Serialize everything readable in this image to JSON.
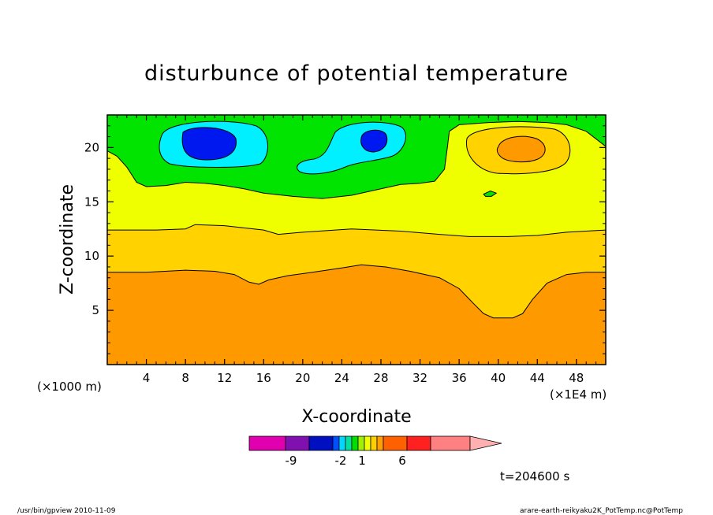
{
  "chart_data": {
    "type": "heatmap",
    "title": "disturbunce of potential temperature",
    "xlabel": "X-coordinate",
    "ylabel": "Z-coordinate",
    "x_unit_left": "(×1000 m)",
    "x_unit_right": "(×1E4 m)",
    "xlim": [
      0,
      51
    ],
    "ylim": [
      0,
      23
    ],
    "x_ticks": [
      4,
      8,
      12,
      16,
      20,
      24,
      28,
      32,
      36,
      40,
      44,
      48
    ],
    "y_ticks": [
      5,
      10,
      15,
      20
    ],
    "time_label": "t=204600 s",
    "colorbar": {
      "tick_labels": [
        "-9",
        "-2",
        "1",
        "6"
      ],
      "colors": [
        "#e000b0",
        "#8010b0",
        "#0010c0",
        "#0050ff",
        "#00d8ff",
        "#00e0a0",
        "#00e000",
        "#a0f000",
        "#f0ff00",
        "#ffd000",
        "#ffa000",
        "#ff6000",
        "#ff2020",
        "#ff8080",
        "#ffb0b0"
      ]
    },
    "fill_colors": {
      "orange": "#ff9900",
      "gold": "#ffd200",
      "yellow": "#f0ff00",
      "green": "#00e400",
      "cyan": "#00f0ff",
      "blue": "#0018f0"
    },
    "contours": [
      {
        "name": "orange-top",
        "points": [
          [
            0,
            8.5
          ],
          [
            4,
            8.5
          ],
          [
            8,
            8.7
          ],
          [
            11,
            8.6
          ],
          [
            13,
            8.3
          ],
          [
            14.5,
            7.6
          ],
          [
            15.5,
            7.4
          ],
          [
            16.5,
            7.8
          ],
          [
            18.5,
            8.2
          ],
          [
            21,
            8.5
          ],
          [
            24,
            8.9
          ],
          [
            26,
            9.2
          ],
          [
            28.5,
            9.0
          ],
          [
            31,
            8.6
          ],
          [
            34,
            8.0
          ],
          [
            36,
            7.0
          ],
          [
            37.5,
            5.6
          ],
          [
            38.5,
            4.7
          ],
          [
            39.5,
            4.3
          ],
          [
            41.5,
            4.3
          ],
          [
            42.5,
            4.7
          ],
          [
            43.5,
            6.0
          ],
          [
            45,
            7.5
          ],
          [
            47,
            8.3
          ],
          [
            49,
            8.5
          ],
          [
            51,
            8.5
          ]
        ]
      },
      {
        "name": "gold-top",
        "points": [
          [
            0,
            12.4
          ],
          [
            5,
            12.4
          ],
          [
            8,
            12.5
          ],
          [
            9,
            12.9
          ],
          [
            12,
            12.8
          ],
          [
            16,
            12.4
          ],
          [
            17.5,
            12.0
          ],
          [
            20,
            12.2
          ],
          [
            25,
            12.5
          ],
          [
            30,
            12.3
          ],
          [
            34,
            12.0
          ],
          [
            37,
            11.8
          ],
          [
            41,
            11.8
          ],
          [
            44,
            11.9
          ],
          [
            47,
            12.2
          ],
          [
            51,
            12.4
          ]
        ]
      },
      {
        "name": "yellow-top",
        "points": [
          [
            0,
            19.7
          ],
          [
            1,
            19.2
          ],
          [
            2,
            18.2
          ],
          [
            3,
            16.8
          ],
          [
            4,
            16.4
          ],
          [
            6,
            16.5
          ],
          [
            8,
            16.8
          ],
          [
            10,
            16.7
          ],
          [
            12,
            16.5
          ],
          [
            14,
            16.2
          ],
          [
            16,
            15.8
          ],
          [
            19,
            15.5
          ],
          [
            22,
            15.3
          ],
          [
            25,
            15.6
          ],
          [
            28,
            16.2
          ],
          [
            30,
            16.6
          ],
          [
            32,
            16.7
          ],
          [
            33.5,
            16.9
          ],
          [
            34.5,
            18.0
          ],
          [
            34.8,
            20.0
          ],
          [
            35,
            21.5
          ],
          [
            36,
            22.1
          ],
          [
            39,
            22.3
          ],
          [
            42,
            22.4
          ],
          [
            45,
            22.3
          ],
          [
            47,
            22.1
          ],
          [
            49,
            21.5
          ],
          [
            50,
            20.8
          ],
          [
            51,
            20.1
          ]
        ]
      },
      {
        "name": "yellow-blob",
        "closed": true,
        "points": [
          [
            38.5,
            15.7
          ],
          [
            39.2,
            16.0
          ],
          [
            39.8,
            15.8
          ],
          [
            39.3,
            15.5
          ],
          [
            38.7,
            15.5
          ]
        ]
      }
    ]
  },
  "footer": {
    "left": "/usr/bin/gpview   2010-11-09",
    "right": "arare-earth-reikyaku2K_PotTemp.nc@PotTemp"
  }
}
